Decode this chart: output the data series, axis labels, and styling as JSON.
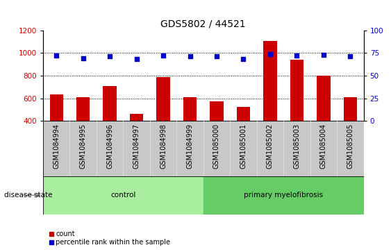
{
  "title": "GDS5802 / 44521",
  "samples": [
    "GSM1084994",
    "GSM1084995",
    "GSM1084996",
    "GSM1084997",
    "GSM1084998",
    "GSM1084999",
    "GSM1085000",
    "GSM1085001",
    "GSM1085002",
    "GSM1085003",
    "GSM1085004",
    "GSM1085005"
  ],
  "counts": [
    635,
    610,
    705,
    465,
    790,
    608,
    572,
    525,
    1105,
    940,
    800,
    608
  ],
  "percentile_ranks": [
    72,
    69,
    71,
    68,
    72,
    71,
    71,
    68,
    74,
    72,
    73,
    71
  ],
  "ylim_left": [
    400,
    1200
  ],
  "ylim_right": [
    0,
    100
  ],
  "yticks_left": [
    400,
    600,
    800,
    1000,
    1200
  ],
  "yticks_right": [
    0,
    25,
    50,
    75,
    100
  ],
  "bar_color": "#cc0000",
  "dot_color": "#0000cc",
  "grid_color": "#000000",
  "bg_color": "#ffffff",
  "tick_area_color": "#c8c8c8",
  "control_color": "#aaeea0",
  "myelofibrosis_color": "#66cc66",
  "control_label": "control",
  "myelofibrosis_label": "primary myelofibrosis",
  "control_indices": [
    0,
    1,
    2,
    3,
    4,
    5
  ],
  "myelofibrosis_indices": [
    6,
    7,
    8,
    9,
    10,
    11
  ],
  "disease_state_label": "disease state",
  "legend_count_label": "count",
  "legend_percentile_label": "percentile rank within the sample",
  "title_fontsize": 10,
  "label_fontsize": 7.5
}
